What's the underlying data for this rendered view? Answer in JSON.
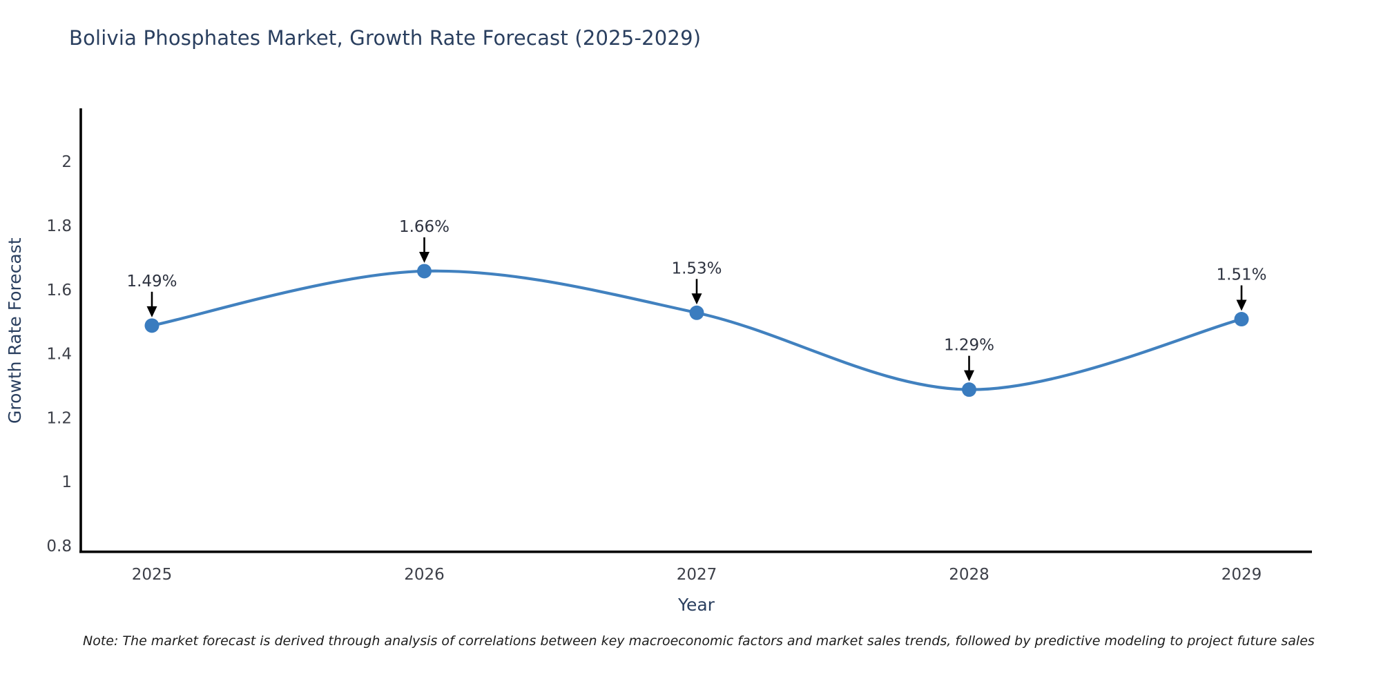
{
  "title": "Bolivia Phosphates Market, Growth Rate Forecast (2025-2029)",
  "note": "Note: The market forecast is derived through analysis of correlations between key macroeconomic factors and market sales trends, followed by predictive modeling to project future sales",
  "colors": {
    "title": "#2a3f5f",
    "axis_line": "#000000",
    "tick_label": "#3d4049",
    "series_line": "#4181bf",
    "marker": "#3a7cbf",
    "annotation_text": "#2e3340",
    "annotation_arrow": "#000000",
    "note_text": "#1c1c1c"
  },
  "chart_data": {
    "type": "line",
    "title": "Bolivia Phosphates Market, Growth Rate Forecast (2025-2029)",
    "xlabel": "Year",
    "ylabel": "Growth Rate Forecast",
    "x": [
      "2025",
      "2026",
      "2027",
      "2028",
      "2029"
    ],
    "values": [
      1.49,
      1.66,
      1.53,
      1.29,
      1.51
    ],
    "point_labels": [
      "1.49%",
      "1.66%",
      "1.53%",
      "1.29%",
      "1.51%"
    ],
    "yticks": [
      0.8,
      1,
      1.2,
      1.4,
      1.6,
      1.8,
      2
    ],
    "ylim": [
      0.78,
      2.16
    ],
    "grid": false,
    "legend_position": "none",
    "line_shape": "spline",
    "annotation_arrows": true
  }
}
